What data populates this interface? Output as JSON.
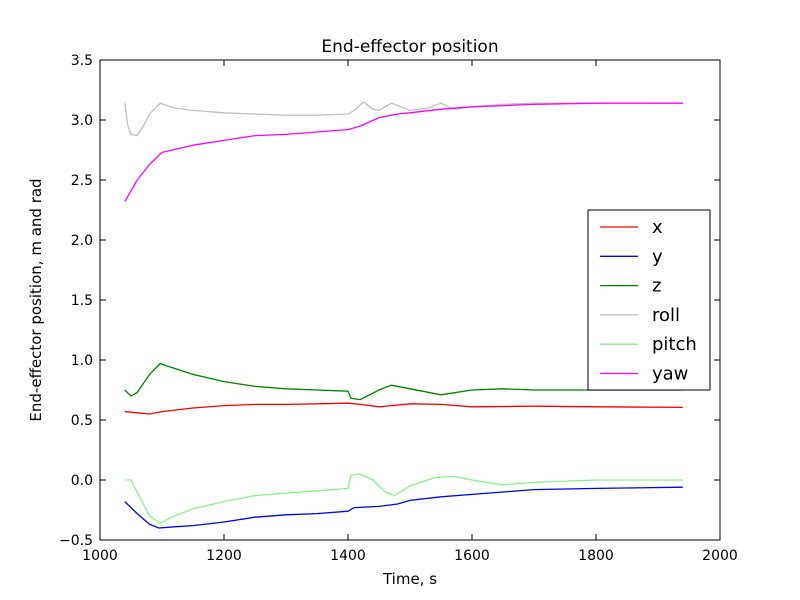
{
  "chart_data": {
    "type": "line",
    "title": "End-effector position",
    "xlabel": "Time, s",
    "ylabel": "End-effector position, m and rad",
    "xlim": [
      1000,
      2000
    ],
    "ylim": [
      -0.5,
      3.5
    ],
    "xticks": [
      1000,
      1200,
      1400,
      1600,
      1800,
      2000
    ],
    "yticks": [
      -0.5,
      0.0,
      0.5,
      1.0,
      1.5,
      2.0,
      2.5,
      3.0,
      3.5
    ],
    "ytick_labels": [
      "−0.5",
      "0.0",
      "0.5",
      "1.0",
      "1.5",
      "2.0",
      "2.5",
      "3.0",
      "3.5"
    ],
    "legend_position": "center-right",
    "grid": false,
    "series": [
      {
        "name": "x",
        "color": "#ff0000",
        "x": [
          1040,
          1060,
          1080,
          1100,
          1150,
          1200,
          1250,
          1300,
          1350,
          1400,
          1420,
          1450,
          1500,
          1550,
          1600,
          1700,
          1800,
          1940
        ],
        "y": [
          0.57,
          0.56,
          0.55,
          0.57,
          0.6,
          0.62,
          0.63,
          0.63,
          0.635,
          0.64,
          0.63,
          0.61,
          0.635,
          0.63,
          0.61,
          0.615,
          0.61,
          0.605
        ]
      },
      {
        "name": "y",
        "color": "#0000ff",
        "x": [
          1040,
          1060,
          1080,
          1095,
          1120,
          1150,
          1200,
          1250,
          1300,
          1350,
          1400,
          1410,
          1450,
          1480,
          1500,
          1550,
          1600,
          1650,
          1700,
          1800,
          1940
        ],
        "y": [
          -0.18,
          -0.28,
          -0.37,
          -0.4,
          -0.39,
          -0.38,
          -0.35,
          -0.31,
          -0.29,
          -0.28,
          -0.26,
          -0.23,
          -0.22,
          -0.2,
          -0.17,
          -0.14,
          -0.12,
          -0.1,
          -0.08,
          -0.07,
          -0.06
        ]
      },
      {
        "name": "z",
        "color": "#008000",
        "x": [
          1040,
          1050,
          1060,
          1080,
          1097,
          1120,
          1150,
          1200,
          1250,
          1300,
          1350,
          1400,
          1405,
          1420,
          1450,
          1470,
          1500,
          1550,
          1600,
          1650,
          1700,
          1800,
          1940
        ],
        "y": [
          0.75,
          0.7,
          0.73,
          0.88,
          0.97,
          0.93,
          0.88,
          0.82,
          0.78,
          0.76,
          0.75,
          0.74,
          0.68,
          0.67,
          0.75,
          0.79,
          0.76,
          0.71,
          0.75,
          0.76,
          0.75,
          0.75,
          0.75
        ]
      },
      {
        "name": "roll",
        "color": "#c0c0c0",
        "x": [
          1040,
          1045,
          1050,
          1060,
          1070,
          1080,
          1097,
          1120,
          1150,
          1200,
          1250,
          1300,
          1350,
          1400,
          1410,
          1425,
          1440,
          1450,
          1470,
          1500,
          1530,
          1550,
          1570,
          1600,
          1650,
          1700,
          1800,
          1940
        ],
        "y": [
          3.14,
          2.95,
          2.88,
          2.87,
          2.95,
          3.05,
          3.14,
          3.1,
          3.08,
          3.06,
          3.05,
          3.04,
          3.04,
          3.05,
          3.08,
          3.15,
          3.09,
          3.08,
          3.14,
          3.08,
          3.1,
          3.14,
          3.09,
          3.11,
          3.13,
          3.14,
          3.14,
          3.14
        ]
      },
      {
        "name": "pitch",
        "color": "#90ee90",
        "x": [
          1040,
          1050,
          1060,
          1080,
          1097,
          1120,
          1150,
          1200,
          1250,
          1300,
          1350,
          1400,
          1405,
          1420,
          1440,
          1460,
          1475,
          1500,
          1540,
          1570,
          1600,
          1650,
          1700,
          1800,
          1940
        ],
        "y": [
          0.0,
          0.0,
          -0.1,
          -0.3,
          -0.36,
          -0.3,
          -0.24,
          -0.18,
          -0.13,
          -0.11,
          -0.09,
          -0.07,
          0.04,
          0.05,
          0.0,
          -0.1,
          -0.13,
          -0.05,
          0.02,
          0.03,
          0.0,
          -0.04,
          -0.02,
          0.0,
          0.0
        ]
      },
      {
        "name": "yaw",
        "color": "#ff00ff",
        "x": [
          1040,
          1060,
          1080,
          1100,
          1150,
          1200,
          1250,
          1300,
          1350,
          1400,
          1420,
          1450,
          1480,
          1500,
          1550,
          1600,
          1700,
          1800,
          1940
        ],
        "y": [
          2.32,
          2.5,
          2.63,
          2.73,
          2.79,
          2.83,
          2.87,
          2.88,
          2.9,
          2.92,
          2.95,
          3.02,
          3.05,
          3.06,
          3.09,
          3.11,
          3.13,
          3.14,
          3.14
        ]
      }
    ]
  }
}
